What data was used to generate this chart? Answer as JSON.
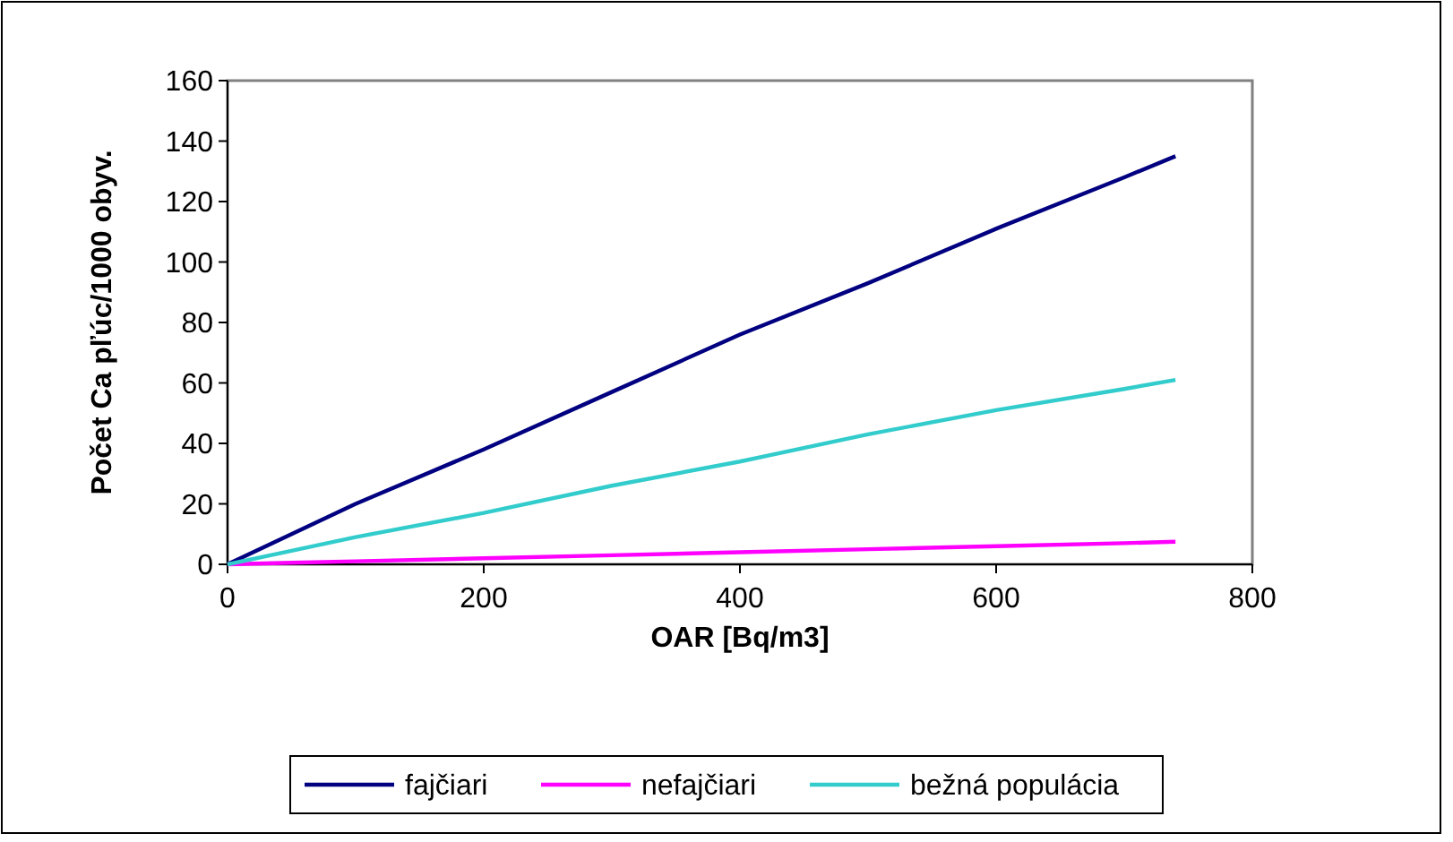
{
  "chart_data": {
    "type": "line",
    "xlabel": "OAR [Bq/m3]",
    "ylabel": "Počet Ca pľúc/1000 obyv.",
    "x": [
      0,
      50,
      100,
      200,
      300,
      400,
      500,
      600,
      700,
      740
    ],
    "series": [
      {
        "name": "fajčiari",
        "color": "#000080",
        "values": [
          0,
          10,
          20,
          38,
          57,
          76,
          93,
          111,
          128,
          135
        ]
      },
      {
        "name": "nefajčiari",
        "color": "#ff00ff",
        "values": [
          0,
          0.5,
          1,
          2,
          3,
          4,
          5,
          6,
          7,
          7.5
        ]
      },
      {
        "name": "bežná populácia",
        "color": "#33cccc",
        "values": [
          0,
          4.5,
          9,
          17,
          26,
          34,
          43,
          51,
          58,
          61
        ]
      }
    ],
    "xlim": [
      0,
      800
    ],
    "xticks": [
      0,
      200,
      400,
      600,
      800
    ],
    "ylim": [
      0,
      160
    ],
    "yticks": [
      0,
      20,
      40,
      60,
      80,
      100,
      120,
      140,
      160
    ],
    "grid": false,
    "legend": "bottom",
    "marker": "none",
    "line_style": "solid"
  }
}
